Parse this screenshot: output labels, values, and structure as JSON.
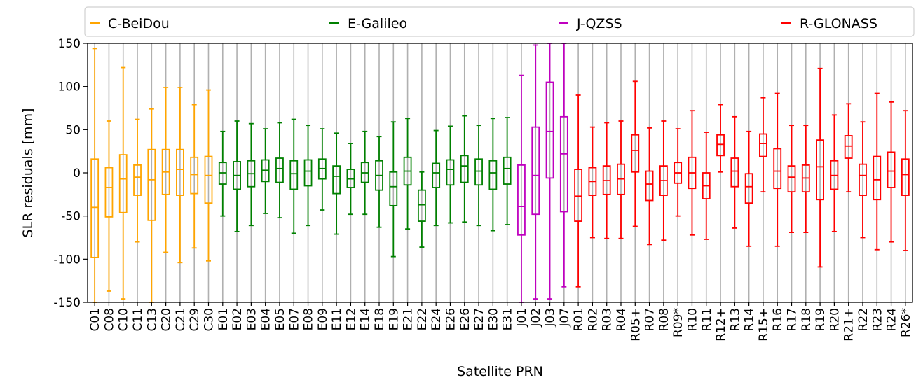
{
  "chart_data": {
    "type": "box",
    "xlabel": "Satellite PRN",
    "ylabel": "SLR residuals [mm]",
    "ylim": [
      -150,
      150
    ],
    "yticks": [
      -150,
      -100,
      -50,
      0,
      50,
      100,
      150
    ],
    "grid": "vertical",
    "legend_position": "top",
    "groups": [
      {
        "name": "C-BeiDou",
        "color": "#FFA500"
      },
      {
        "name": "E-Galileo",
        "color": "#008000"
      },
      {
        "name": "J-QZSS",
        "color": "#BF00BF"
      },
      {
        "name": "R-GLONASS",
        "color": "#FF0000"
      }
    ],
    "boxes": [
      {
        "label": "C01",
        "group": 0,
        "whisker_low": -150,
        "q1": -98,
        "median": -40,
        "q3": 16,
        "whisker_high": 144
      },
      {
        "label": "C08",
        "group": 0,
        "whisker_low": -137,
        "q1": -51,
        "median": -17,
        "q3": 6,
        "whisker_high": 60
      },
      {
        "label": "C10",
        "group": 0,
        "whisker_low": -146,
        "q1": -46,
        "median": -7,
        "q3": 21,
        "whisker_high": 122
      },
      {
        "label": "C11",
        "group": 0,
        "whisker_low": -80,
        "q1": -26,
        "median": -5,
        "q3": 9,
        "whisker_high": 62
      },
      {
        "label": "C13",
        "group": 0,
        "whisker_low": -150,
        "q1": -55,
        "median": -8,
        "q3": 27,
        "whisker_high": 74
      },
      {
        "label": "C20",
        "group": 0,
        "whisker_low": -92,
        "q1": -25,
        "median": 1,
        "q3": 27,
        "whisker_high": 99
      },
      {
        "label": "C21",
        "group": 0,
        "whisker_low": -104,
        "q1": -26,
        "median": 4,
        "q3": 27,
        "whisker_high": 99
      },
      {
        "label": "C29",
        "group": 0,
        "whisker_low": -87,
        "q1": -24,
        "median": -2,
        "q3": 18,
        "whisker_high": 79
      },
      {
        "label": "C30",
        "group": 0,
        "whisker_low": -102,
        "q1": -35,
        "median": -3,
        "q3": 19,
        "whisker_high": 96
      },
      {
        "label": "E01",
        "group": 1,
        "whisker_low": -50,
        "q1": -13,
        "median": 0,
        "q3": 12,
        "whisker_high": 48
      },
      {
        "label": "E02",
        "group": 1,
        "whisker_low": -68,
        "q1": -19,
        "median": -3,
        "q3": 13,
        "whisker_high": 60
      },
      {
        "label": "E03",
        "group": 1,
        "whisker_low": -61,
        "q1": -16,
        "median": -1,
        "q3": 14,
        "whisker_high": 57
      },
      {
        "label": "E04",
        "group": 1,
        "whisker_low": -47,
        "q1": -10,
        "median": 3,
        "q3": 15,
        "whisker_high": 51
      },
      {
        "label": "E05",
        "group": 1,
        "whisker_low": -52,
        "q1": -11,
        "median": 5,
        "q3": 17,
        "whisker_high": 58
      },
      {
        "label": "E07",
        "group": 1,
        "whisker_low": -70,
        "q1": -19,
        "median": -1,
        "q3": 14,
        "whisker_high": 62
      },
      {
        "label": "E08",
        "group": 1,
        "whisker_low": -61,
        "q1": -15,
        "median": 2,
        "q3": 15,
        "whisker_high": 55
      },
      {
        "label": "E09",
        "group": 1,
        "whisker_low": -43,
        "q1": -7,
        "median": 5,
        "q3": 16,
        "whisker_high": 51
      },
      {
        "label": "E11",
        "group": 1,
        "whisker_low": -71,
        "q1": -24,
        "median": -4,
        "q3": 8,
        "whisker_high": 46
      },
      {
        "label": "E12",
        "group": 1,
        "whisker_low": -48,
        "q1": -17,
        "median": -7,
        "q3": 4,
        "whisker_high": 34
      },
      {
        "label": "E14",
        "group": 1,
        "whisker_low": -48,
        "q1": -11,
        "median": 0,
        "q3": 12,
        "whisker_high": 48
      },
      {
        "label": "E18",
        "group": 1,
        "whisker_low": -63,
        "q1": -20,
        "median": -3,
        "q3": 14,
        "whisker_high": 42
      },
      {
        "label": "E19",
        "group": 1,
        "whisker_low": -97,
        "q1": -38,
        "median": -16,
        "q3": 1,
        "whisker_high": 59
      },
      {
        "label": "E21",
        "group": 1,
        "whisker_low": -65,
        "q1": -14,
        "median": 2,
        "q3": 18,
        "whisker_high": 63
      },
      {
        "label": "E22",
        "group": 1,
        "whisker_low": -86,
        "q1": -56,
        "median": -37,
        "q3": -20,
        "whisker_high": 1
      },
      {
        "label": "E24",
        "group": 1,
        "whisker_low": -61,
        "q1": -17,
        "median": 0,
        "q3": 11,
        "whisker_high": 49
      },
      {
        "label": "E26",
        "group": 1,
        "whisker_low": -58,
        "q1": -14,
        "median": 4,
        "q3": 15,
        "whisker_high": 54
      },
      {
        "label": "E26",
        "group": 1,
        "whisker_low": -57,
        "q1": -11,
        "median": 8,
        "q3": 20,
        "whisker_high": 66
      },
      {
        "label": "E27",
        "group": 1,
        "whisker_low": -61,
        "q1": -14,
        "median": 2,
        "q3": 16,
        "whisker_high": 55
      },
      {
        "label": "E30",
        "group": 1,
        "whisker_low": -67,
        "q1": -19,
        "median": 0,
        "q3": 14,
        "whisker_high": 63
      },
      {
        "label": "E31",
        "group": 1,
        "whisker_low": -60,
        "q1": -13,
        "median": 5,
        "q3": 18,
        "whisker_high": 64
      },
      {
        "label": "J01",
        "group": 2,
        "whisker_low": -150,
        "q1": -72,
        "median": -39,
        "q3": 9,
        "whisker_high": 113
      },
      {
        "label": "J02",
        "group": 2,
        "whisker_low": -146,
        "q1": -48,
        "median": -3,
        "q3": 53,
        "whisker_high": 148
      },
      {
        "label": "J03",
        "group": 2,
        "whisker_low": -146,
        "q1": -6,
        "median": 48,
        "q3": 105,
        "whisker_high": 150
      },
      {
        "label": "J07",
        "group": 2,
        "whisker_low": -132,
        "q1": -45,
        "median": 22,
        "q3": 65,
        "whisker_high": 150
      },
      {
        "label": "R01",
        "group": 3,
        "whisker_low": -132,
        "q1": -56,
        "median": -27,
        "q3": 4,
        "whisker_high": 90
      },
      {
        "label": "R02",
        "group": 3,
        "whisker_low": -75,
        "q1": -26,
        "median": -10,
        "q3": 6,
        "whisker_high": 53
      },
      {
        "label": "R03",
        "group": 3,
        "whisker_low": -76,
        "q1": -25,
        "median": -9,
        "q3": 8,
        "whisker_high": 58
      },
      {
        "label": "R04",
        "group": 3,
        "whisker_low": -76,
        "q1": -25,
        "median": -7,
        "q3": 10,
        "whisker_high": 60
      },
      {
        "label": "R05+",
        "group": 3,
        "whisker_low": -62,
        "q1": 1,
        "median": 26,
        "q3": 44,
        "whisker_high": 106
      },
      {
        "label": "R07",
        "group": 3,
        "whisker_low": -83,
        "q1": -32,
        "median": -13,
        "q3": 2,
        "whisker_high": 52
      },
      {
        "label": "R08",
        "group": 3,
        "whisker_low": -78,
        "q1": -26,
        "median": -9,
        "q3": 8,
        "whisker_high": 60
      },
      {
        "label": "R09*",
        "group": 3,
        "whisker_low": -50,
        "q1": -12,
        "median": 0,
        "q3": 12,
        "whisker_high": 51
      },
      {
        "label": "R10",
        "group": 3,
        "whisker_low": -72,
        "q1": -18,
        "median": 0,
        "q3": 18,
        "whisker_high": 72
      },
      {
        "label": "R11",
        "group": 3,
        "whisker_low": -77,
        "q1": -30,
        "median": -15,
        "q3": 0,
        "whisker_high": 47
      },
      {
        "label": "R12+",
        "group": 3,
        "whisker_low": 1,
        "q1": 20,
        "median": 33,
        "q3": 44,
        "whisker_high": 79
      },
      {
        "label": "R13",
        "group": 3,
        "whisker_low": -64,
        "q1": -16,
        "median": 2,
        "q3": 17,
        "whisker_high": 65
      },
      {
        "label": "R14",
        "group": 3,
        "whisker_low": -85,
        "q1": -35,
        "median": -16,
        "q3": -1,
        "whisker_high": 48
      },
      {
        "label": "R15+",
        "group": 3,
        "whisker_low": -22,
        "q1": 19,
        "median": 34,
        "q3": 45,
        "whisker_high": 87
      },
      {
        "label": "R16",
        "group": 3,
        "whisker_low": -85,
        "q1": -18,
        "median": 2,
        "q3": 28,
        "whisker_high": 92
      },
      {
        "label": "R17",
        "group": 3,
        "whisker_low": -69,
        "q1": -22,
        "median": -5,
        "q3": 8,
        "whisker_high": 55
      },
      {
        "label": "R18",
        "group": 3,
        "whisker_low": -69,
        "q1": -22,
        "median": -6,
        "q3": 9,
        "whisker_high": 55
      },
      {
        "label": "R19",
        "group": 3,
        "whisker_low": -109,
        "q1": -31,
        "median": 7,
        "q3": 38,
        "whisker_high": 121
      },
      {
        "label": "R20",
        "group": 3,
        "whisker_low": -68,
        "q1": -19,
        "median": -3,
        "q3": 14,
        "whisker_high": 67
      },
      {
        "label": "R21+",
        "group": 3,
        "whisker_low": -22,
        "q1": 17,
        "median": 31,
        "q3": 43,
        "whisker_high": 80
      },
      {
        "label": "R22",
        "group": 3,
        "whisker_low": -75,
        "q1": -26,
        "median": -3,
        "q3": 10,
        "whisker_high": 59
      },
      {
        "label": "R23",
        "group": 3,
        "whisker_low": -89,
        "q1": -31,
        "median": -8,
        "q3": 19,
        "whisker_high": 92
      },
      {
        "label": "R24",
        "group": 3,
        "whisker_low": -80,
        "q1": -17,
        "median": 2,
        "q3": 24,
        "whisker_high": 82
      },
      {
        "label": "R26*",
        "group": 3,
        "whisker_low": -90,
        "q1": -26,
        "median": -2,
        "q3": 16,
        "whisker_high": 72
      }
    ]
  }
}
